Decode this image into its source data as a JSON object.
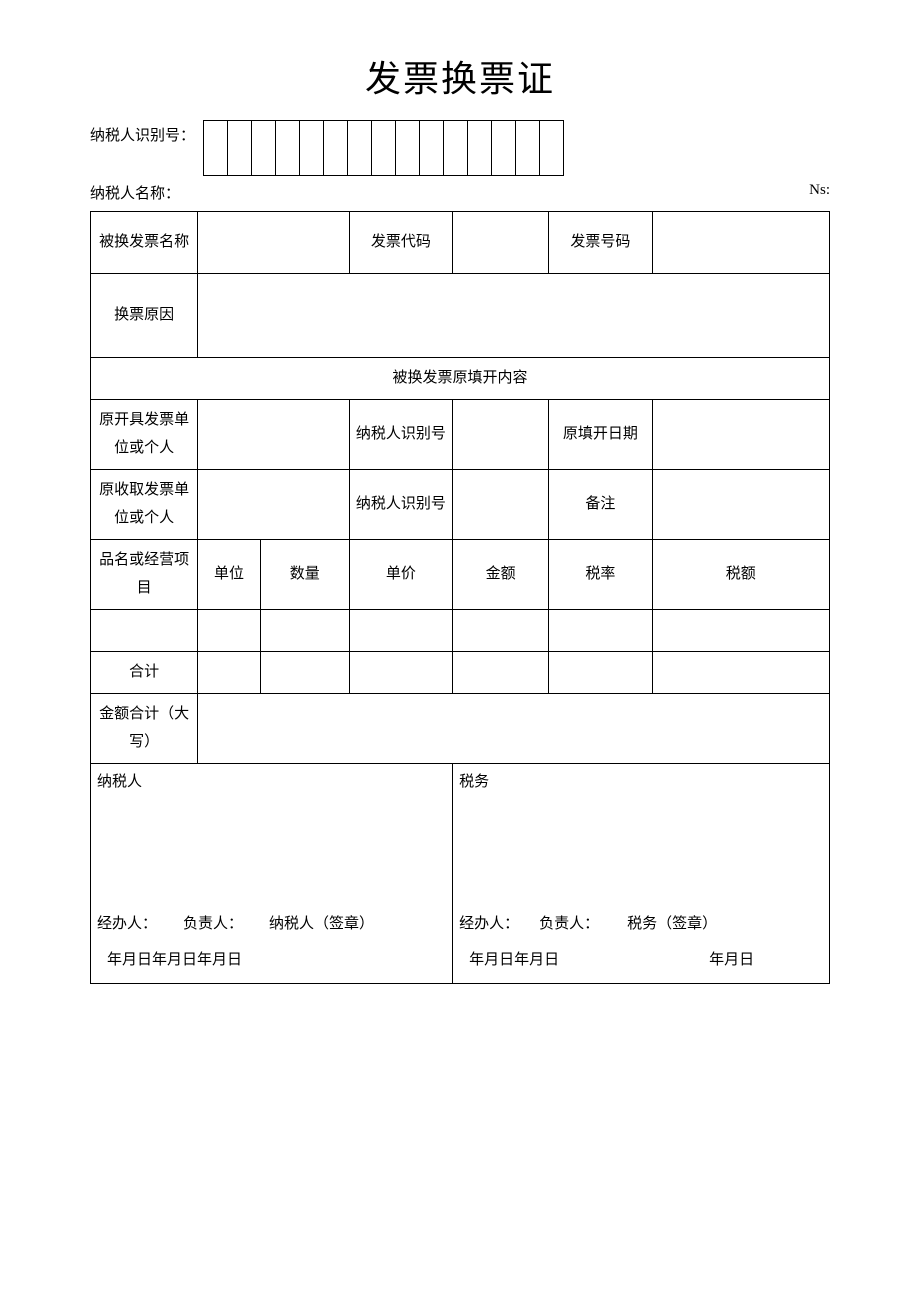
{
  "title": "发票换票证",
  "taxpayer_id_label": "纳税人识别号：",
  "taxpayer_id_box_count": 15,
  "taxpayer_name_label": "纳税人名称：",
  "ns_label": "Ns:",
  "row1": {
    "name_label": "被换发票名称",
    "code_label": "发票代码",
    "number_label": "发票号码"
  },
  "reason_label": "换票原因",
  "section_header": "被换发票原填开内容",
  "row_issuer": {
    "label": "原开具发票单位或个人",
    "id_label": "纳税人识别号",
    "date_label": "原填开日期"
  },
  "row_receiver": {
    "label": "原收取发票单位或个人",
    "id_label": "纳税人识别号",
    "remark_label": "备注"
  },
  "columns": {
    "item": "品名或经营项目",
    "unit": "单位",
    "qty": "数量",
    "price": "单价",
    "amount": "金额",
    "tax_rate": "税率",
    "tax_amount": "税额"
  },
  "total_label": "合计",
  "total_cn_label": "金额合计（大写）",
  "sig_left": {
    "header": "纳税人",
    "p1": "经办人：",
    "p2": "负责人：",
    "p3": "纳税人（签章）",
    "dates": "年月日年月日年月日"
  },
  "sig_right": {
    "header": "税务",
    "p1": "经办人：",
    "p2": "负责人：",
    "p3": "税务（签章）",
    "dates1": "年月日年月日",
    "dates2": "年月日"
  },
  "style": {
    "font_family": "SimSun",
    "border_color": "#000000",
    "background": "#ffffff",
    "title_fontsize": 36,
    "body_fontsize": 15
  }
}
